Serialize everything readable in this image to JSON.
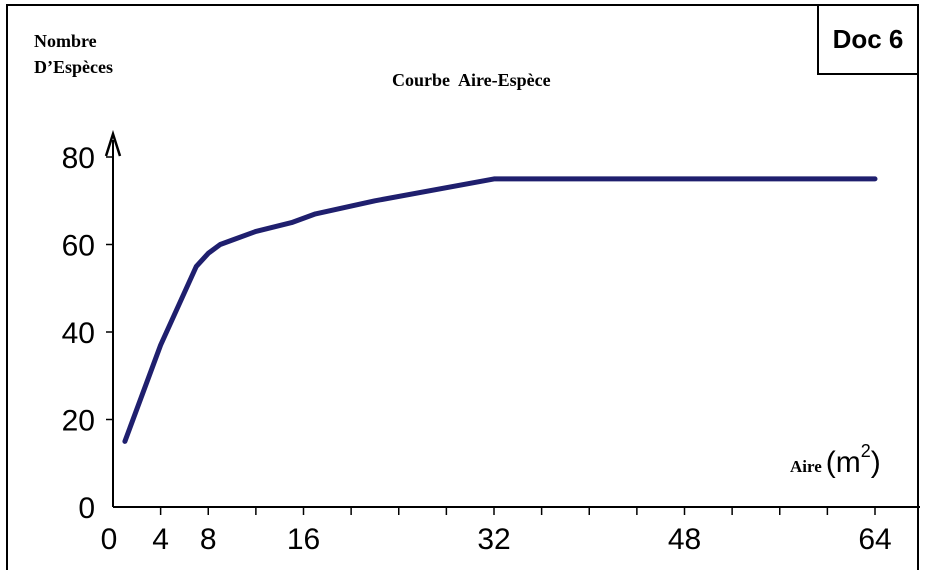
{
  "doc_label": "Doc 6",
  "chart_data": {
    "type": "line",
    "title": "Courbe  Aire-Espèce",
    "ylabel_lines": [
      "Nombre",
      "D’Espèces"
    ],
    "xlabel": "Aire",
    "xlabel_unit": "(m",
    "xlabel_unit_exp": "2",
    "xlabel_unit_close": ")",
    "xlim": [
      0,
      64
    ],
    "ylim": [
      0,
      80
    ],
    "xticks": [
      0,
      4,
      8,
      16,
      32,
      48,
      64
    ],
    "yticks": [
      0,
      20,
      40,
      60,
      80
    ],
    "grid": false,
    "line_color": "#1f1f6e",
    "series": [
      {
        "x": [
          1,
          4,
          6,
          7,
          8,
          9,
          10,
          12,
          15,
          17,
          22,
          32,
          48,
          64
        ],
        "y": [
          15,
          37,
          49,
          55,
          58,
          60,
          61,
          63,
          65,
          67,
          70,
          75,
          75,
          75
        ]
      }
    ]
  }
}
